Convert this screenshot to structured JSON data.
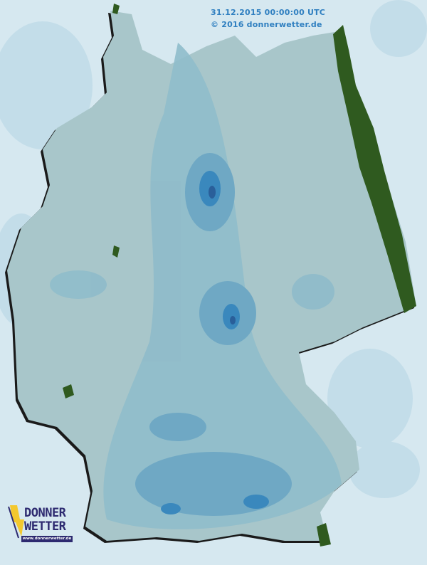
{
  "map": {
    "region": "Germany",
    "layer": "precipitation radar",
    "timestamp": "31.12.2015 00:00:00 UTC",
    "copyright": "© 2016 donnerwetter.de",
    "colors": {
      "background": "#d6e8f0",
      "land": "#a8c6ca",
      "light_precip": "#8fbccb",
      "moderate_precip": "#6fa8c4",
      "heavy_precip": "#3a88bd",
      "very_heavy_precip": "#2a5f9a",
      "green_area": "#2f5a1f",
      "brand_text": "#2f7fc0"
    }
  },
  "logo": {
    "line1": "DONNER",
    "line2": "WETTER",
    "url": "www.donnerwetter.de"
  }
}
